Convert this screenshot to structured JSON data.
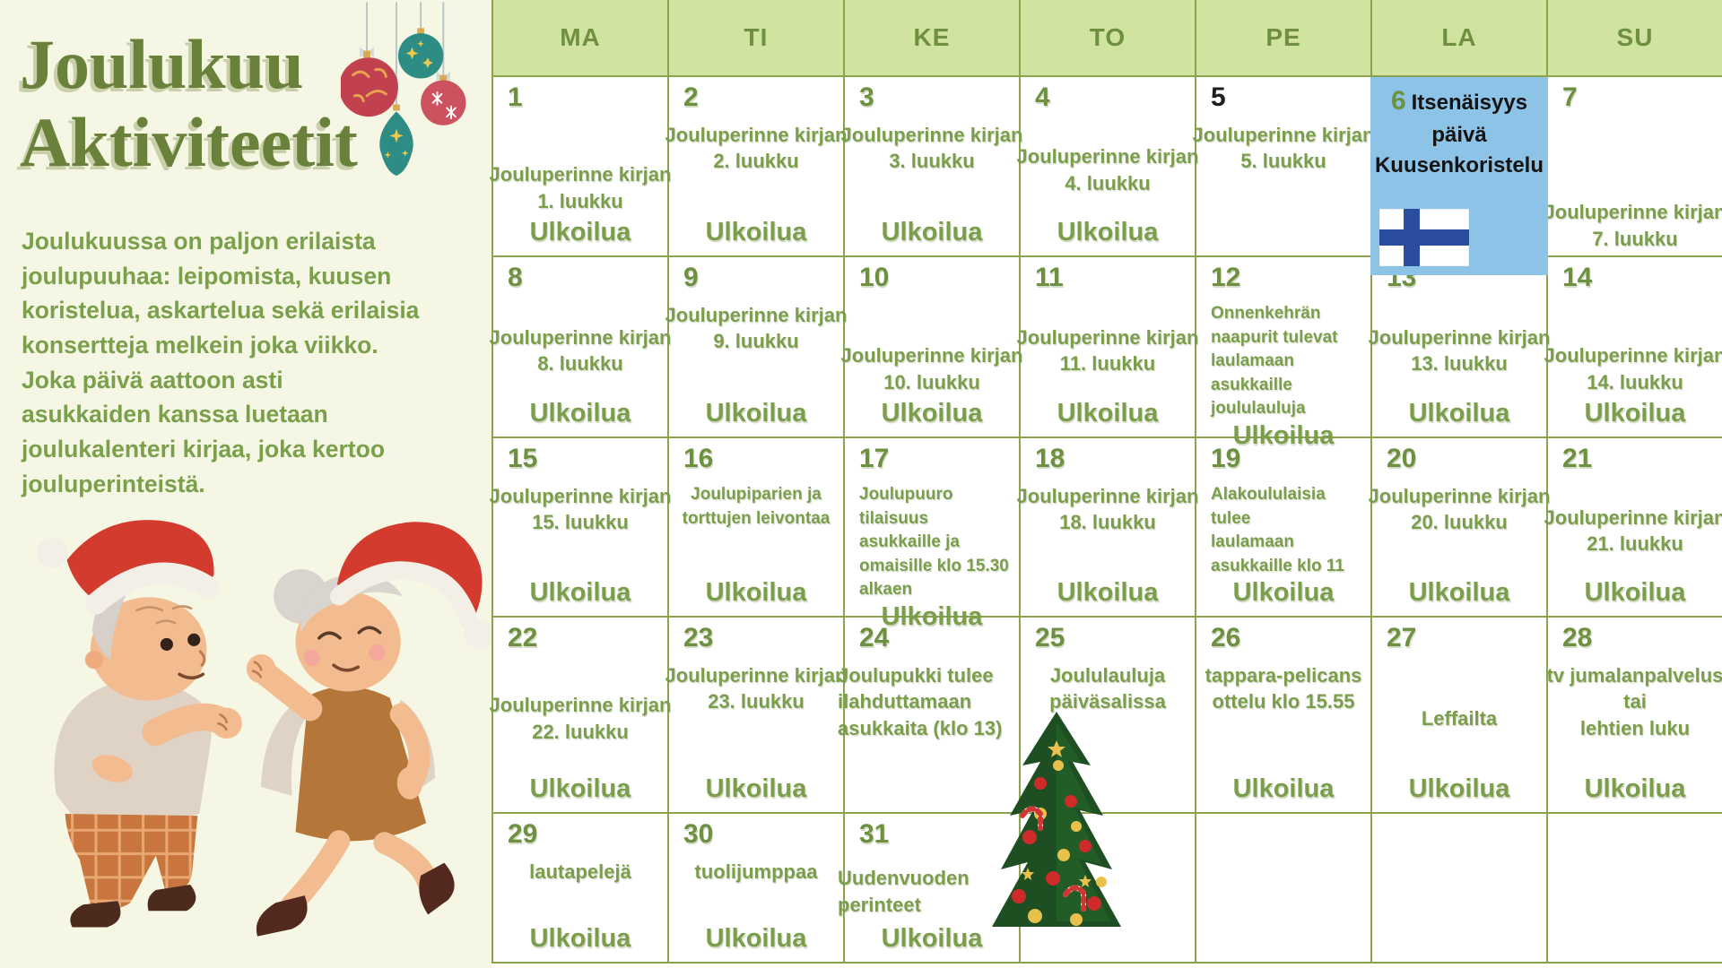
{
  "poster": {
    "title_line1": "Joulukuu",
    "title_line2": "Aktiviteetit",
    "intro": "Joulukuussa on paljon erilaista\njoulupuuhaa: leipomista, kuusen\nkoristelua, askartelua sekä erilaisia\nkonsertteja melkein joka viikko.\nJoka päivä aattoon asti\nasukkaiden kanssa luetaan\njoulukalenteri kirjaa, joka kertoo\njouluperinteistä."
  },
  "calendar": {
    "weekday_headers": [
      "MA",
      "TI",
      "KE",
      "TO",
      "PE",
      "LA",
      "SU"
    ],
    "days": [
      {
        "num": "1",
        "activity": "Jouluperinne kirjan\n1. luukku",
        "outdoor": "Ulkoilua"
      },
      {
        "num": "2",
        "activity": "Jouluperinne kirjan\n2. luukku",
        "outdoor": "Ulkoilua"
      },
      {
        "num": "3",
        "activity": "Jouluperinne kirjan\n3. luukku",
        "outdoor": "Ulkoilua"
      },
      {
        "num": "4",
        "activity": "Jouluperinne kirjan\n4. luukku",
        "outdoor": "Ulkoilua"
      },
      {
        "num": "5",
        "activity": "Jouluperinne kirjan\n5. luukku"
      },
      {
        "num": "6",
        "holiday": {
          "line1": "Itsenäisyys",
          "line2": "päivä",
          "line3": "Kuusenkoristelu",
          "flag": "finland-flag"
        }
      },
      {
        "num": "7",
        "activity": "Jouluperinne kirjan\n7. luukku"
      },
      {
        "num": "8",
        "activity": "Jouluperinne kirjan\n8. luukku",
        "outdoor": "Ulkoilua"
      },
      {
        "num": "9",
        "activity": "Jouluperinne kirjan\n9. luukku",
        "outdoor": "Ulkoilua"
      },
      {
        "num": "10",
        "activity": "Jouluperinne kirjan\n10. luukku",
        "outdoor": "Ulkoilua"
      },
      {
        "num": "11",
        "activity": "Jouluperinne kirjan\n11. luukku",
        "outdoor": "Ulkoilua"
      },
      {
        "num": "12",
        "activity": "Onnenkehrän\nnaapurit tulevat\nlaulamaan asukkaille\njoululauluja",
        "outdoor": "Ulkoilua"
      },
      {
        "num": "13",
        "activity": "Jouluperinne kirjan\n13. luukku",
        "outdoor": "Ulkoilua"
      },
      {
        "num": "14",
        "activity": "Jouluperinne kirjan\n14. luukku",
        "outdoor": "Ulkoilua"
      },
      {
        "num": "15",
        "activity": "Jouluperinne kirjan\n15. luukku",
        "outdoor": "Ulkoilua"
      },
      {
        "num": "16",
        "activity": "Joulupiparien ja\ntorttujen leivontaa",
        "outdoor": "Ulkoilua"
      },
      {
        "num": "17",
        "activity": "Joulupuuro tilaisuus\nasukkaille ja\nomaisille klo 15.30\nalkaen",
        "outdoor": "Ulkoilua"
      },
      {
        "num": "18",
        "activity": "Jouluperinne kirjan\n18. luukku",
        "outdoor": "Ulkoilua"
      },
      {
        "num": "19",
        "activity": "Alakoululaisia tulee\nlaulamaan\nasukkaille klo 11",
        "outdoor": "Ulkoilua"
      },
      {
        "num": "20",
        "activity": "Jouluperinne kirjan\n20. luukku",
        "outdoor": "Ulkoilua"
      },
      {
        "num": "21",
        "activity": "Jouluperinne kirjan\n21. luukku",
        "outdoor": "Ulkoilua"
      },
      {
        "num": "22",
        "activity": "Jouluperinne kirjan\n22. luukku",
        "outdoor": "Ulkoilua"
      },
      {
        "num": "23",
        "activity": "Jouluperinne kirjan\n23. luukku",
        "outdoor": "Ulkoilua"
      },
      {
        "num": "24",
        "activity": "Joulupukki tulee\nilahduttamaan\nasukkaita (klo 13)"
      },
      {
        "num": "25",
        "activity": "Joululauluja\npäiväsalissa",
        "tree": true
      },
      {
        "num": "26",
        "activity": "tappara-pelicans\nottelu klo 15.55",
        "outdoor": "Ulkoilua"
      },
      {
        "num": "27",
        "activity": "Leffailta",
        "outdoor": "Ulkoilua"
      },
      {
        "num": "28",
        "activity": "tv jumalanpalvelus\ntai\nlehtien luku",
        "outdoor": "Ulkoilua"
      },
      {
        "num": "29",
        "activity": "lautapelejä",
        "outdoor": "Ulkoilua"
      },
      {
        "num": "30",
        "activity": "tuolijumppaa",
        "outdoor": "Ulkoilua"
      },
      {
        "num": "31",
        "activity": "Uudenvuoden\nperinteet",
        "outdoor": "Ulkoilua"
      },
      {
        "num": ""
      },
      {
        "num": ""
      },
      {
        "num": ""
      },
      {
        "num": ""
      }
    ]
  },
  "colors": {
    "background_cream": "#f5f6e3",
    "header_green": "#d1e3a0",
    "grid_line_green": "#8aa44e",
    "text_green": "#7b9e4d",
    "title_green": "#69813a",
    "holiday_blue": "#8dc3e6",
    "flag_blue": "#2b4d9e",
    "santa_red": "#d23b2e"
  },
  "icons": [
    "hanging-baubles-icon",
    "finland-flag-icon",
    "christmas-tree-icon",
    "dancing-elderly-couple-illustration"
  ]
}
